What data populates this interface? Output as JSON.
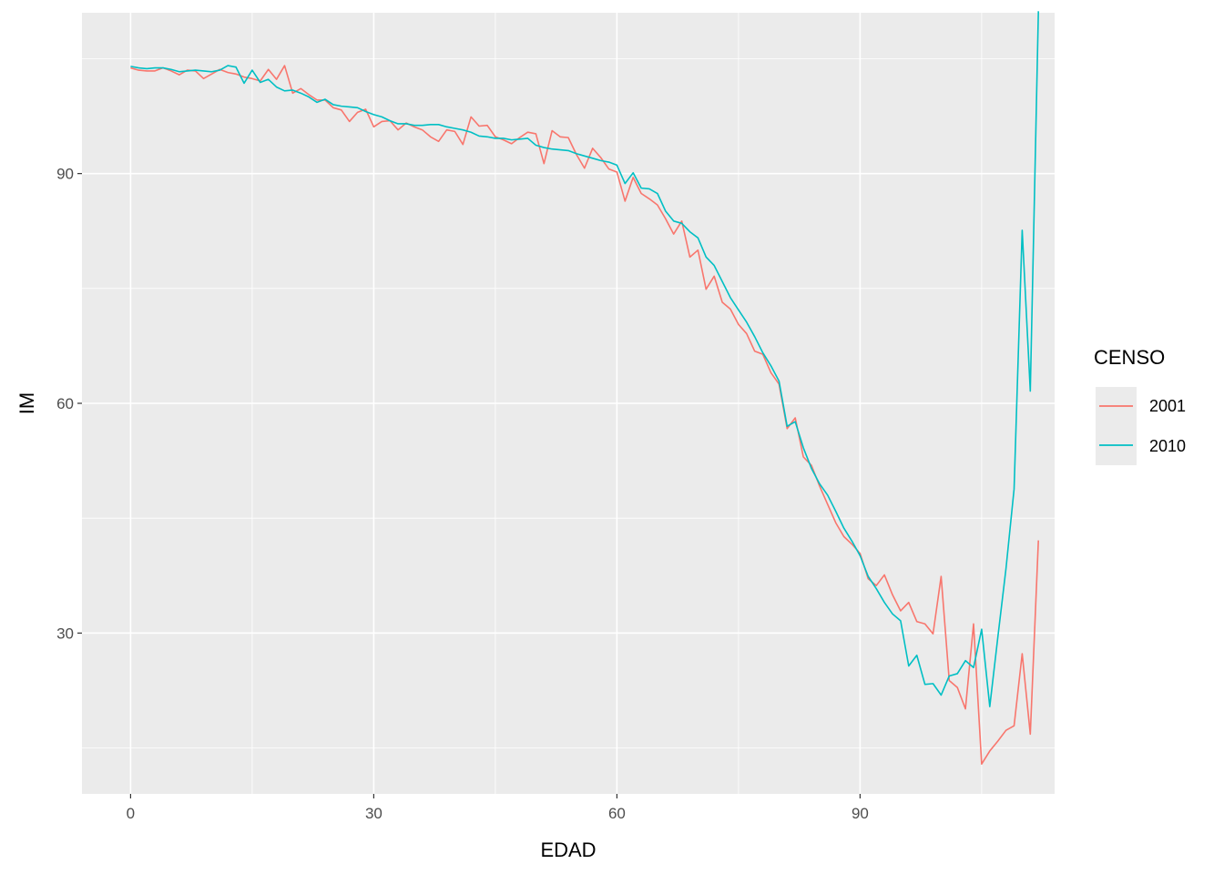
{
  "chart_data": {
    "type": "line",
    "xlabel": "EDAD",
    "ylabel": "IM",
    "xlim": [
      -6,
      114
    ],
    "ylim": [
      9,
      111
    ],
    "x_ticks": [
      0,
      30,
      60,
      90
    ],
    "x_tick_labels": [
      "0",
      "30",
      "60",
      "90"
    ],
    "y_ticks": [
      30,
      60,
      90
    ],
    "y_tick_labels": [
      "30",
      "60",
      "90"
    ],
    "x_minor": [
      15,
      45,
      75,
      105
    ],
    "y_minor": [
      15,
      45,
      75,
      105
    ],
    "grid": true,
    "legend": {
      "title": "CENSO",
      "placement": "right"
    },
    "series": [
      {
        "name": "2001",
        "color": "#F8766D",
        "points": [
          [
            0,
            103.8
          ],
          [
            1,
            103.5
          ],
          [
            2,
            103.4
          ],
          [
            3,
            103.4
          ],
          [
            4,
            103.8
          ],
          [
            5,
            103.4
          ],
          [
            6,
            102.9
          ],
          [
            7,
            103.5
          ],
          [
            8,
            103.4
          ],
          [
            9,
            102.4
          ],
          [
            10,
            103.0
          ],
          [
            11,
            103.6
          ],
          [
            12,
            103.2
          ],
          [
            13,
            103.0
          ],
          [
            14,
            102.6
          ],
          [
            15,
            102.4
          ],
          [
            16,
            102.1
          ],
          [
            17,
            103.6
          ],
          [
            18,
            102.3
          ],
          [
            19,
            104.1
          ],
          [
            20,
            100.5
          ],
          [
            21,
            101.1
          ],
          [
            22,
            100.3
          ],
          [
            23,
            99.6
          ],
          [
            24,
            99.6
          ],
          [
            25,
            98.6
          ],
          [
            26,
            98.3
          ],
          [
            27,
            96.8
          ],
          [
            28,
            98.0
          ],
          [
            29,
            98.4
          ],
          [
            30,
            96.1
          ],
          [
            31,
            96.8
          ],
          [
            32,
            96.9
          ],
          [
            33,
            95.7
          ],
          [
            34,
            96.6
          ],
          [
            35,
            96.1
          ],
          [
            36,
            95.7
          ],
          [
            37,
            94.8
          ],
          [
            38,
            94.2
          ],
          [
            39,
            95.7
          ],
          [
            40,
            95.5
          ],
          [
            41,
            93.8
          ],
          [
            42,
            97.4
          ],
          [
            43,
            96.2
          ],
          [
            44,
            96.3
          ],
          [
            45,
            94.8
          ],
          [
            46,
            94.4
          ],
          [
            47,
            93.9
          ],
          [
            48,
            94.7
          ],
          [
            49,
            95.4
          ],
          [
            50,
            95.2
          ],
          [
            51,
            91.3
          ],
          [
            52,
            95.6
          ],
          [
            53,
            94.8
          ],
          [
            54,
            94.7
          ],
          [
            55,
            92.5
          ],
          [
            56,
            90.7
          ],
          [
            57,
            93.3
          ],
          [
            58,
            92.1
          ],
          [
            59,
            90.6
          ],
          [
            60,
            90.2
          ],
          [
            61,
            86.4
          ],
          [
            62,
            89.5
          ],
          [
            63,
            87.4
          ],
          [
            64,
            86.7
          ],
          [
            65,
            85.9
          ],
          [
            66,
            84.1
          ],
          [
            67,
            82.1
          ],
          [
            68,
            83.8
          ],
          [
            69,
            79.1
          ],
          [
            70,
            80.0
          ],
          [
            71,
            74.9
          ],
          [
            72,
            76.6
          ],
          [
            73,
            73.2
          ],
          [
            74,
            72.3
          ],
          [
            75,
            70.3
          ],
          [
            76,
            69.1
          ],
          [
            77,
            66.8
          ],
          [
            78,
            66.4
          ],
          [
            79,
            64.0
          ],
          [
            80,
            62.5
          ],
          [
            81,
            56.7
          ],
          [
            82,
            58.1
          ],
          [
            83,
            53.0
          ],
          [
            84,
            51.9
          ],
          [
            85,
            49.2
          ],
          [
            86,
            46.8
          ],
          [
            87,
            44.4
          ],
          [
            88,
            42.6
          ],
          [
            89,
            41.6
          ],
          [
            90,
            40.4
          ],
          [
            91,
            37.1
          ],
          [
            92,
            36.2
          ],
          [
            93,
            37.6
          ],
          [
            94,
            35.0
          ],
          [
            95,
            32.9
          ],
          [
            96,
            34.0
          ],
          [
            97,
            31.5
          ],
          [
            98,
            31.2
          ],
          [
            99,
            29.9
          ],
          [
            100,
            37.4
          ],
          [
            101,
            23.8
          ],
          [
            102,
            22.9
          ],
          [
            103,
            20.1
          ],
          [
            104,
            31.2
          ],
          [
            105,
            12.9
          ],
          [
            106,
            14.6
          ],
          [
            107,
            15.9
          ],
          [
            108,
            17.3
          ],
          [
            109,
            17.9
          ],
          [
            110,
            27.3
          ],
          [
            111,
            16.8
          ],
          [
            112,
            42.1
          ]
        ]
      },
      {
        "name": "2010",
        "color": "#00BFC4",
        "points": [
          [
            0,
            104.0
          ],
          [
            1,
            103.8
          ],
          [
            2,
            103.7
          ],
          [
            3,
            103.8
          ],
          [
            4,
            103.8
          ],
          [
            5,
            103.6
          ],
          [
            6,
            103.3
          ],
          [
            7,
            103.4
          ],
          [
            8,
            103.5
          ],
          [
            9,
            103.4
          ],
          [
            10,
            103.3
          ],
          [
            11,
            103.5
          ],
          [
            12,
            104.1
          ],
          [
            13,
            103.9
          ],
          [
            14,
            101.8
          ],
          [
            15,
            103.5
          ],
          [
            16,
            101.9
          ],
          [
            17,
            102.3
          ],
          [
            18,
            101.3
          ],
          [
            19,
            100.8
          ],
          [
            20,
            100.9
          ],
          [
            21,
            100.5
          ],
          [
            22,
            100.0
          ],
          [
            23,
            99.3
          ],
          [
            24,
            99.7
          ],
          [
            25,
            99.0
          ],
          [
            26,
            98.8
          ],
          [
            27,
            98.7
          ],
          [
            28,
            98.6
          ],
          [
            29,
            98.1
          ],
          [
            30,
            97.7
          ],
          [
            31,
            97.4
          ],
          [
            32,
            96.9
          ],
          [
            33,
            96.5
          ],
          [
            34,
            96.5
          ],
          [
            35,
            96.3
          ],
          [
            36,
            96.3
          ],
          [
            37,
            96.4
          ],
          [
            38,
            96.4
          ],
          [
            39,
            96.1
          ],
          [
            40,
            95.9
          ],
          [
            41,
            95.7
          ],
          [
            42,
            95.4
          ],
          [
            43,
            94.9
          ],
          [
            44,
            94.8
          ],
          [
            45,
            94.6
          ],
          [
            46,
            94.6
          ],
          [
            47,
            94.4
          ],
          [
            48,
            94.5
          ],
          [
            49,
            94.6
          ],
          [
            50,
            93.7
          ],
          [
            51,
            93.4
          ],
          [
            52,
            93.2
          ],
          [
            53,
            93.1
          ],
          [
            54,
            93.0
          ],
          [
            55,
            92.6
          ],
          [
            56,
            92.3
          ],
          [
            57,
            92.0
          ],
          [
            58,
            91.7
          ],
          [
            59,
            91.5
          ],
          [
            60,
            91.1
          ],
          [
            61,
            88.7
          ],
          [
            62,
            90.1
          ],
          [
            63,
            88.1
          ],
          [
            64,
            88.0
          ],
          [
            65,
            87.4
          ],
          [
            66,
            85.1
          ],
          [
            67,
            83.8
          ],
          [
            68,
            83.5
          ],
          [
            69,
            82.4
          ],
          [
            70,
            81.6
          ],
          [
            71,
            79.1
          ],
          [
            72,
            78.0
          ],
          [
            73,
            75.9
          ],
          [
            74,
            73.8
          ],
          [
            75,
            72.2
          ],
          [
            76,
            70.6
          ],
          [
            77,
            68.7
          ],
          [
            78,
            66.6
          ],
          [
            79,
            64.9
          ],
          [
            80,
            62.9
          ],
          [
            81,
            57.0
          ],
          [
            82,
            57.6
          ],
          [
            83,
            54.2
          ],
          [
            84,
            51.5
          ],
          [
            85,
            49.5
          ],
          [
            86,
            48.0
          ],
          [
            87,
            45.9
          ],
          [
            88,
            43.7
          ],
          [
            89,
            42.0
          ],
          [
            90,
            40.1
          ],
          [
            91,
            37.4
          ],
          [
            92,
            35.8
          ],
          [
            93,
            34.0
          ],
          [
            94,
            32.5
          ],
          [
            95,
            31.6
          ],
          [
            96,
            25.7
          ],
          [
            97,
            27.1
          ],
          [
            98,
            23.3
          ],
          [
            99,
            23.4
          ],
          [
            100,
            21.9
          ],
          [
            101,
            24.4
          ],
          [
            102,
            24.7
          ],
          [
            103,
            26.4
          ],
          [
            104,
            25.5
          ],
          [
            105,
            30.5
          ],
          [
            106,
            20.4
          ],
          [
            107,
            29.5
          ],
          [
            108,
            38.4
          ],
          [
            109,
            48.8
          ],
          [
            110,
            82.6
          ],
          [
            111,
            61.6
          ],
          [
            112,
            111.2
          ]
        ]
      }
    ]
  }
}
